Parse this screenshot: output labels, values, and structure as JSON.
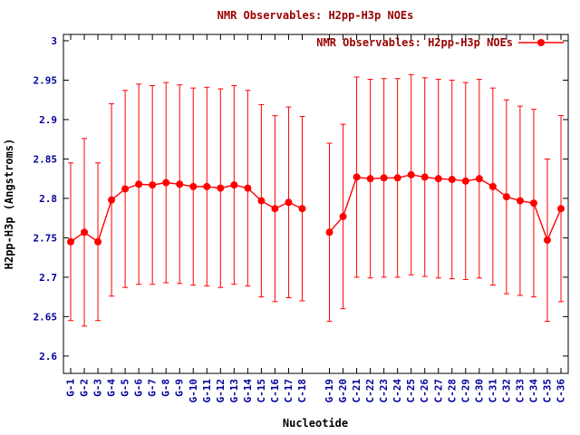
{
  "chart_data": {
    "type": "line",
    "title": "NMR Observables: H2pp-H3p NOEs",
    "legend": "NMR Observables: H2pp-H3p NOEs",
    "xlabel": "Nucleotide",
    "ylabel": "H2pp-H3p (Angstroms)",
    "categories": [
      "G-1",
      "G-2",
      "G-3",
      "G-4",
      "G-5",
      "G-6",
      "G-7",
      "G-8",
      "G-9",
      "G-10",
      "G-11",
      "G-12",
      "G-13",
      "G-14",
      "C-15",
      "C-16",
      "C-17",
      "C-18",
      "G-19",
      "G-20",
      "C-21",
      "C-22",
      "C-23",
      "C-24",
      "C-25",
      "C-26",
      "C-27",
      "C-28",
      "C-29",
      "C-30",
      "C-31",
      "C-32",
      "C-33",
      "C-34",
      "C-35",
      "C-36"
    ],
    "values": [
      2.745,
      2.757,
      2.745,
      2.798,
      2.812,
      2.818,
      2.817,
      2.82,
      2.818,
      2.815,
      2.815,
      2.813,
      2.817,
      2.813,
      2.797,
      2.787,
      2.795,
      2.787,
      2.757,
      2.777,
      2.827,
      2.825,
      2.826,
      2.826,
      2.83,
      2.827,
      2.825,
      2.824,
      2.822,
      2.825,
      2.815,
      2.802,
      2.797,
      2.794,
      2.747,
      2.787
    ],
    "errors": [
      0.1,
      0.119,
      0.1,
      0.122,
      0.125,
      0.127,
      0.126,
      0.127,
      0.126,
      0.125,
      0.126,
      0.126,
      0.126,
      0.124,
      0.122,
      0.118,
      0.121,
      0.117,
      0.113,
      0.117,
      0.127,
      0.126,
      0.126,
      0.126,
      0.127,
      0.126,
      0.126,
      0.126,
      0.125,
      0.126,
      0.125,
      0.123,
      0.12,
      0.119,
      0.103,
      0.118
    ],
    "segments": [
      [
        0,
        17
      ],
      [
        18,
        35
      ]
    ],
    "gap_after_index": 17,
    "yticks": [
      2.6,
      2.65,
      2.7,
      2.75,
      2.8,
      2.85,
      2.9,
      2.95,
      3
    ],
    "ytick_labels": [
      "2.6",
      "2.65",
      "2.7",
      "2.75",
      "2.8",
      "2.85",
      "2.9",
      "2.95",
      "3"
    ],
    "ylim": [
      2.578,
      3.008
    ],
    "grid": false,
    "legend_position": "top-right",
    "colors": {
      "series": "#ff0000",
      "title_text": "#990000",
      "legend_text": "#990000",
      "tick_text": "#000099",
      "axis_text": "#000000",
      "border": "#000000"
    }
  }
}
